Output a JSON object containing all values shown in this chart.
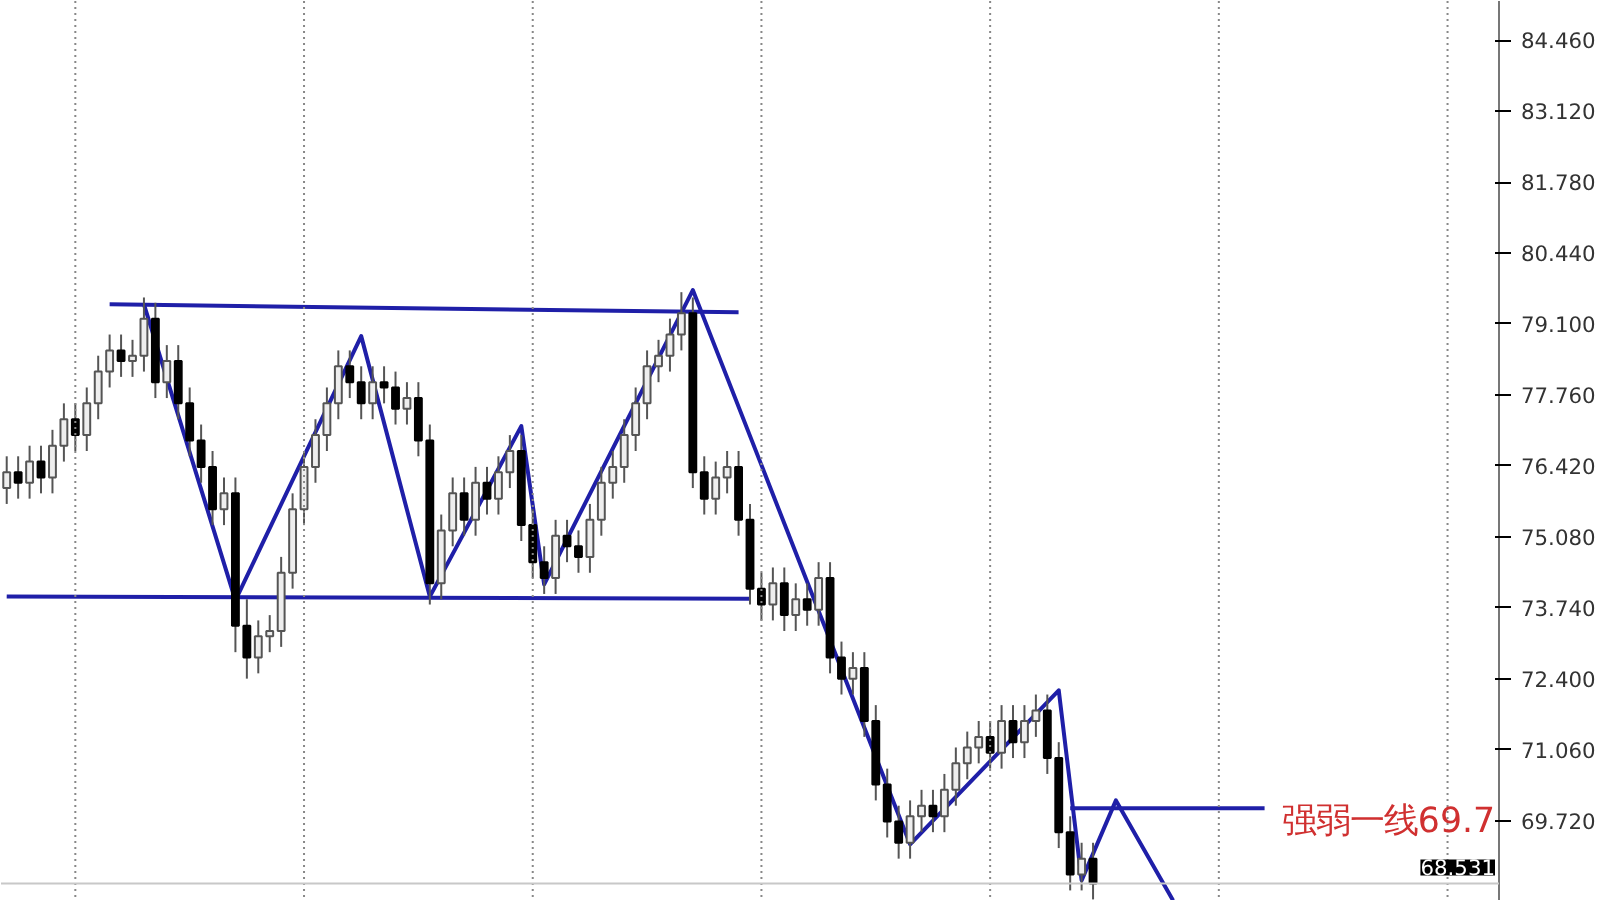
{
  "chart_data": {
    "type": "candlestick",
    "categories": [
      null,
      null,
      null,
      null,
      null,
      null,
      null,
      null,
      null,
      null,
      null,
      null,
      null,
      null,
      null,
      null,
      null,
      null,
      null,
      null,
      null,
      null,
      null,
      null,
      null,
      null,
      null,
      null,
      null,
      null,
      null,
      null,
      null,
      null,
      null,
      null,
      null,
      null,
      null,
      null,
      null,
      null,
      null,
      null,
      null,
      null,
      null,
      null,
      null,
      null,
      null,
      null,
      null,
      null,
      null,
      null,
      null,
      null,
      null,
      null,
      null,
      null,
      null,
      null,
      null,
      null,
      null,
      null,
      null,
      null,
      null,
      null,
      null,
      null,
      null,
      null,
      null,
      null,
      null,
      null,
      null,
      null,
      null,
      null,
      null,
      null,
      null,
      null,
      null,
      null,
      null,
      null,
      null,
      null,
      null,
      null,
      null,
      null,
      null,
      null,
      null,
      null,
      null,
      null,
      null,
      null,
      null,
      null,
      null,
      null,
      null,
      null,
      null,
      null,
      null,
      null,
      null,
      null,
      null,
      null,
      null,
      null,
      null,
      null,
      null,
      null,
      null,
      null,
      null,
      null,
      null
    ],
    "ohlc": [
      [
        76.0,
        76.6,
        75.7,
        76.3
      ],
      [
        76.3,
        76.6,
        75.8,
        76.1
      ],
      [
        76.1,
        76.8,
        75.8,
        76.5
      ],
      [
        76.5,
        76.8,
        75.9,
        76.2
      ],
      [
        76.2,
        77.1,
        75.9,
        76.8
      ],
      [
        76.8,
        77.6,
        76.5,
        77.3
      ],
      [
        77.3,
        77.6,
        76.7,
        77.0
      ],
      [
        77.0,
        77.9,
        76.7,
        77.6
      ],
      [
        77.6,
        78.5,
        77.3,
        78.2
      ],
      [
        78.2,
        78.9,
        77.9,
        78.6
      ],
      [
        78.6,
        78.9,
        78.1,
        78.4
      ],
      [
        78.4,
        78.8,
        78.1,
        78.5
      ],
      [
        78.5,
        79.6,
        78.2,
        79.2
      ],
      [
        79.2,
        79.5,
        77.7,
        78.0
      ],
      [
        78.0,
        78.7,
        77.7,
        78.4
      ],
      [
        78.4,
        78.7,
        77.3,
        77.6
      ],
      [
        77.6,
        77.9,
        76.6,
        76.9
      ],
      [
        76.9,
        77.2,
        76.1,
        76.4
      ],
      [
        76.4,
        76.7,
        75.3,
        75.6
      ],
      [
        75.6,
        76.2,
        75.3,
        75.9
      ],
      [
        75.9,
        76.2,
        72.9,
        73.4
      ],
      [
        73.4,
        73.9,
        72.4,
        72.8
      ],
      [
        72.8,
        73.5,
        72.5,
        73.2
      ],
      [
        73.2,
        73.6,
        72.9,
        73.3
      ],
      [
        73.3,
        74.7,
        73.0,
        74.4
      ],
      [
        74.4,
        75.9,
        74.1,
        75.6
      ],
      [
        75.6,
        76.7,
        75.3,
        76.4
      ],
      [
        76.4,
        77.3,
        76.1,
        77.0
      ],
      [
        77.0,
        77.9,
        76.7,
        77.6
      ],
      [
        77.6,
        78.6,
        77.3,
        78.3
      ],
      [
        78.3,
        78.6,
        77.7,
        78.0
      ],
      [
        78.0,
        78.3,
        77.3,
        77.6
      ],
      [
        77.6,
        78.3,
        77.3,
        78.0
      ],
      [
        78.0,
        78.3,
        77.6,
        77.9
      ],
      [
        77.9,
        78.2,
        77.2,
        77.5
      ],
      [
        77.5,
        78.0,
        77.2,
        77.7
      ],
      [
        77.7,
        78.0,
        76.6,
        76.9
      ],
      [
        76.9,
        77.2,
        73.8,
        74.2
      ],
      [
        74.2,
        75.5,
        73.9,
        75.2
      ],
      [
        75.2,
        76.2,
        74.9,
        75.9
      ],
      [
        75.9,
        76.2,
        75.1,
        75.4
      ],
      [
        75.4,
        76.4,
        75.1,
        76.1
      ],
      [
        76.1,
        76.4,
        75.5,
        75.8
      ],
      [
        75.8,
        76.6,
        75.5,
        76.3
      ],
      [
        76.3,
        77.0,
        76.0,
        76.7
      ],
      [
        76.7,
        77.0,
        75.0,
        75.3
      ],
      [
        75.3,
        75.6,
        74.3,
        74.6
      ],
      [
        74.6,
        74.9,
        74.0,
        74.3
      ],
      [
        74.3,
        75.4,
        74.0,
        75.1
      ],
      [
        75.1,
        75.4,
        74.6,
        74.9
      ],
      [
        74.9,
        75.2,
        74.4,
        74.7
      ],
      [
        74.7,
        75.7,
        74.4,
        75.4
      ],
      [
        75.4,
        76.4,
        75.1,
        76.1
      ],
      [
        76.1,
        76.7,
        75.8,
        76.4
      ],
      [
        76.4,
        77.3,
        76.1,
        77.0
      ],
      [
        77.0,
        77.9,
        76.7,
        77.6
      ],
      [
        77.6,
        78.6,
        77.3,
        78.3
      ],
      [
        78.3,
        78.8,
        78.0,
        78.5
      ],
      [
        78.5,
        79.2,
        78.2,
        78.9
      ],
      [
        78.9,
        79.7,
        78.6,
        79.3
      ],
      [
        79.3,
        79.6,
        76.0,
        76.3
      ],
      [
        76.3,
        76.6,
        75.5,
        75.8
      ],
      [
        75.8,
        76.5,
        75.5,
        76.2
      ],
      [
        76.2,
        76.7,
        75.9,
        76.4
      ],
      [
        76.4,
        76.7,
        75.1,
        75.4
      ],
      [
        75.4,
        75.7,
        73.8,
        74.1
      ],
      [
        74.1,
        74.4,
        73.5,
        73.8
      ],
      [
        73.8,
        74.5,
        73.5,
        74.2
      ],
      [
        74.2,
        74.5,
        73.3,
        73.6
      ],
      [
        73.6,
        74.2,
        73.3,
        73.9
      ],
      [
        73.9,
        74.2,
        73.4,
        73.7
      ],
      [
        73.7,
        74.6,
        73.4,
        74.3
      ],
      [
        74.3,
        74.6,
        72.5,
        72.8
      ],
      [
        72.8,
        73.1,
        72.1,
        72.4
      ],
      [
        72.4,
        72.9,
        72.1,
        72.6
      ],
      [
        72.6,
        72.9,
        71.3,
        71.6
      ],
      [
        71.6,
        71.9,
        70.1,
        70.4
      ],
      [
        70.4,
        70.7,
        69.4,
        69.7
      ],
      [
        69.7,
        70.0,
        69.0,
        69.3
      ],
      [
        69.3,
        70.1,
        69.0,
        69.8
      ],
      [
        69.8,
        70.3,
        69.5,
        70.0
      ],
      [
        70.0,
        70.3,
        69.5,
        69.8
      ],
      [
        69.8,
        70.6,
        69.5,
        70.3
      ],
      [
        70.3,
        71.1,
        70.0,
        70.8
      ],
      [
        70.8,
        71.4,
        70.5,
        71.1
      ],
      [
        71.1,
        71.6,
        70.8,
        71.3
      ],
      [
        71.3,
        71.6,
        70.7,
        71.0
      ],
      [
        71.0,
        71.9,
        70.7,
        71.6
      ],
      [
        71.6,
        71.9,
        70.9,
        71.2
      ],
      [
        71.2,
        71.9,
        70.9,
        71.6
      ],
      [
        71.6,
        72.1,
        71.3,
        71.8
      ],
      [
        71.8,
        72.1,
        70.6,
        70.9
      ],
      [
        70.9,
        71.2,
        69.2,
        69.5
      ],
      [
        69.5,
        69.8,
        68.4,
        68.7
      ],
      [
        68.7,
        69.3,
        68.4,
        69.0
      ],
      [
        69.0,
        69.3,
        68.23,
        68.53
      ],
      null,
      null,
      null,
      null,
      null,
      null,
      null,
      null,
      null,
      null,
      null,
      null,
      null,
      null,
      null,
      null,
      null,
      null,
      null,
      null,
      null,
      null,
      null,
      null,
      null,
      null,
      null,
      null,
      null,
      null,
      null,
      null,
      null,
      null,
      null
    ],
    "series": [
      {
        "type": "line",
        "color": "#1f1fa8",
        "values": [
          null,
          null,
          null,
          null,
          null,
          null,
          null,
          null,
          null,
          79.47,
          null,
          null,
          null,
          null,
          null,
          null,
          null,
          null,
          null,
          null,
          null,
          null,
          null,
          null,
          null,
          null,
          null,
          null,
          null,
          null,
          null,
          null,
          null,
          null,
          null,
          null,
          null,
          null,
          null,
          null,
          null,
          null,
          null,
          null,
          null,
          null,
          null,
          null,
          null,
          null,
          null,
          null,
          null,
          null,
          null,
          null,
          null,
          null,
          null,
          null,
          null,
          null,
          null,
          null,
          79.32,
          null,
          null,
          null,
          null,
          null,
          null,
          null,
          null,
          null,
          null,
          null,
          null,
          null,
          null,
          null,
          null,
          null,
          null,
          null,
          null,
          null,
          null,
          null,
          null,
          null,
          null,
          null,
          null,
          null,
          null,
          null,
          null,
          null,
          null,
          null,
          null,
          null,
          null,
          null,
          null,
          null,
          null,
          null,
          null,
          null,
          null,
          null,
          null,
          null,
          null,
          null,
          null,
          null,
          null,
          null,
          null,
          null,
          null,
          null,
          null,
          null,
          null,
          null,
          null,
          null,
          null
        ]
      },
      {
        "type": "line",
        "color": "#1f1fa8",
        "values": [
          73.95,
          null,
          null,
          null,
          null,
          null,
          null,
          null,
          null,
          null,
          null,
          null,
          null,
          null,
          null,
          null,
          null,
          null,
          null,
          null,
          null,
          null,
          null,
          null,
          null,
          null,
          null,
          null,
          null,
          null,
          null,
          null,
          null,
          null,
          null,
          null,
          null,
          null,
          null,
          null,
          null,
          null,
          null,
          null,
          null,
          null,
          null,
          null,
          null,
          null,
          null,
          null,
          null,
          null,
          null,
          null,
          null,
          null,
          null,
          null,
          null,
          null,
          null,
          null,
          null,
          73.91,
          null,
          null,
          null,
          null,
          null,
          null,
          null,
          null,
          null,
          null,
          null,
          null,
          null,
          null,
          null,
          null,
          null,
          null,
          null,
          null,
          null,
          null,
          null,
          null,
          null,
          null,
          null,
          null,
          null,
          null,
          null,
          null,
          null,
          null,
          null,
          null,
          null,
          null,
          null,
          null,
          null,
          null,
          null,
          null,
          null,
          null,
          null,
          null,
          null,
          null,
          null,
          null,
          null,
          null,
          null,
          null,
          null,
          null,
          null,
          null,
          null,
          null,
          null,
          null,
          null
        ]
      },
      {
        "type": "line",
        "color": "#1f1fa8",
        "values": [
          null,
          null,
          null,
          null,
          null,
          null,
          null,
          null,
          null,
          null,
          null,
          null,
          79.47,
          null,
          null,
          null,
          null,
          null,
          null,
          null,
          73.88,
          null,
          null,
          null,
          null,
          null,
          null,
          null,
          null,
          null,
          null,
          78.87,
          null,
          null,
          null,
          null,
          null,
          73.95,
          null,
          null,
          null,
          null,
          null,
          null,
          null,
          77.17,
          null,
          74.18,
          null,
          null,
          null,
          null,
          null,
          null,
          null,
          null,
          null,
          null,
          null,
          null,
          79.74,
          null,
          null,
          null,
          null,
          null,
          null,
          null,
          null,
          null,
          null,
          null,
          null,
          null,
          null,
          null,
          null,
          null,
          null,
          69.27,
          null,
          null,
          null,
          null,
          null,
          null,
          null,
          null,
          null,
          null,
          null,
          null,
          72.18,
          null,
          68.59,
          null,
          null,
          70.1,
          null,
          null,
          null,
          null,
          68.21,
          null,
          null,
          null,
          null,
          null,
          null,
          null,
          null,
          null,
          null,
          null,
          null,
          null,
          null,
          null,
          null,
          null,
          null,
          null,
          null,
          null,
          null,
          null,
          null,
          null,
          null,
          null,
          null
        ]
      },
      {
        "type": "line",
        "color": "#1f1fa8",
        "values": [
          null,
          null,
          null,
          null,
          null,
          null,
          null,
          null,
          null,
          null,
          null,
          null,
          null,
          null,
          null,
          null,
          null,
          null,
          null,
          null,
          null,
          null,
          null,
          null,
          null,
          null,
          null,
          null,
          null,
          null,
          null,
          null,
          null,
          null,
          null,
          null,
          null,
          null,
          null,
          null,
          null,
          null,
          null,
          null,
          null,
          null,
          null,
          null,
          null,
          null,
          null,
          null,
          null,
          null,
          null,
          null,
          null,
          null,
          null,
          null,
          null,
          null,
          null,
          null,
          null,
          null,
          null,
          null,
          null,
          null,
          null,
          null,
          null,
          null,
          null,
          null,
          null,
          null,
          null,
          null,
          null,
          null,
          null,
          null,
          null,
          null,
          null,
          null,
          null,
          null,
          null,
          null,
          null,
          69.95,
          null,
          null,
          null,
          null,
          null,
          null,
          null,
          null,
          null,
          null,
          null,
          null,
          null,
          null,
          null,
          null,
          69.95,
          null,
          null,
          null,
          null,
          null,
          null,
          null,
          null,
          null,
          null,
          null,
          null,
          null,
          null,
          null,
          null,
          null,
          null,
          null,
          null
        ]
      }
    ],
    "ylim": [
      68.2,
      85.2
    ],
    "yticks": [
      {
        "value": 69.72,
        "label": "69.720"
      },
      {
        "value": 71.06,
        "label": "71.060"
      },
      {
        "value": 72.4,
        "label": "72.400"
      },
      {
        "value": 73.74,
        "label": "73.740"
      },
      {
        "value": 75.08,
        "label": "75.080"
      },
      {
        "value": 76.42,
        "label": "76.420"
      },
      {
        "value": 77.76,
        "label": "77.760"
      },
      {
        "value": 79.1,
        "label": "79.100"
      },
      {
        "value": 80.44,
        "label": "80.440"
      },
      {
        "value": 81.78,
        "label": "81.780"
      },
      {
        "value": 83.12,
        "label": "83.120"
      },
      {
        "value": 84.46,
        "label": "84.460"
      }
    ],
    "ref_lines": [
      {
        "axis": "y",
        "value": 68.531,
        "label": "68.531",
        "color": "#c8c8c8"
      }
    ],
    "annotations": [
      "强弱一线69.7"
    ]
  }
}
